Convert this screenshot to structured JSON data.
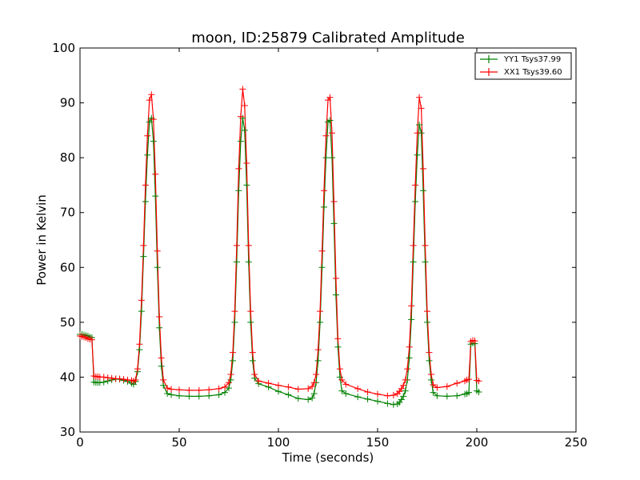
{
  "chart_data": {
    "type": "line",
    "title": "moon, ID:25879 Calibrated Amplitude",
    "xlabel": "Time (seconds)",
    "ylabel": "Power in Kelvin",
    "xlim": [
      0,
      250
    ],
    "ylim": [
      30,
      100
    ],
    "xticks": [
      "0",
      "50",
      "100",
      "150",
      "200",
      "250"
    ],
    "yticks": [
      "30",
      "40",
      "50",
      "60",
      "70",
      "80",
      "90",
      "100"
    ],
    "grid": false,
    "legend_position": "top-right",
    "x": [
      0,
      1,
      2,
      3,
      4,
      5,
      6,
      7,
      8,
      9,
      10,
      12,
      14,
      16,
      18,
      20,
      22,
      24,
      26,
      27,
      28,
      29,
      30,
      31,
      32,
      33,
      34,
      35,
      36,
      37,
      38,
      39,
      40,
      41,
      42,
      44,
      46,
      50,
      55,
      60,
      65,
      70,
      73,
      75,
      76,
      77,
      78,
      79,
      80,
      81,
      82,
      83,
      84,
      85,
      86,
      87,
      88,
      90,
      95,
      100,
      105,
      110,
      115,
      117,
      118,
      119,
      120,
      121,
      122,
      123,
      124,
      125,
      126,
      127,
      128,
      129,
      130,
      131,
      132,
      134,
      140,
      145,
      150,
      155,
      158,
      160,
      161,
      162,
      163,
      164,
      165,
      166,
      167,
      168,
      169,
      170,
      171,
      172,
      173,
      174,
      175,
      176,
      177,
      178,
      180,
      185,
      190,
      194,
      195,
      196,
      197,
      198,
      199,
      200,
      201
    ],
    "series": [
      {
        "name": "YY1 Tsys37.99",
        "color": "#008000",
        "values": [
          47.8,
          47.8,
          47.7,
          47.6,
          47.5,
          47.3,
          47.2,
          39.1,
          39.0,
          39.0,
          39.0,
          39.1,
          39.3,
          39.5,
          39.7,
          39.6,
          39.4,
          39.2,
          38.9,
          38.7,
          39.2,
          41.0,
          45.0,
          52.0,
          62.0,
          72.0,
          80.5,
          86.5,
          87.2,
          83.0,
          73.0,
          60.0,
          49.0,
          42.0,
          38.5,
          37.0,
          36.8,
          36.6,
          36.5,
          36.5,
          36.6,
          36.8,
          37.2,
          38.0,
          39.5,
          43.0,
          50.0,
          61.0,
          74.0,
          83.0,
          87.2,
          85.0,
          75.0,
          61.0,
          50.0,
          43.0,
          39.8,
          38.8,
          38.2,
          37.4,
          36.8,
          36.1,
          35.9,
          36.2,
          37.0,
          39.0,
          43.0,
          50.0,
          60.0,
          71.0,
          80.0,
          86.5,
          86.8,
          80.0,
          68.0,
          55.0,
          45.5,
          40.0,
          37.5,
          37.0,
          36.4,
          36.0,
          35.6,
          35.2,
          35.0,
          35.1,
          35.4,
          35.9,
          36.5,
          37.5,
          39.5,
          43.5,
          50.5,
          61.0,
          72.0,
          80.5,
          86.0,
          84.5,
          74.0,
          61.0,
          50.0,
          43.0,
          39.5,
          37.2,
          36.6,
          36.5,
          36.6,
          36.9,
          37.0,
          37.2,
          46.0,
          46.2,
          46.1,
          37.5,
          37.3
        ]
      },
      {
        "name": "XX1 Tsys39.60",
        "color": "#ff0000",
        "values": [
          47.5,
          47.4,
          47.3,
          47.2,
          47.0,
          46.9,
          46.8,
          40.2,
          40.1,
          40.1,
          40.0,
          40.0,
          39.9,
          39.8,
          39.7,
          39.7,
          39.6,
          39.5,
          39.4,
          39.3,
          39.5,
          41.5,
          46.0,
          54.0,
          64.0,
          75.0,
          84.0,
          90.5,
          91.5,
          87.0,
          77.0,
          63.0,
          51.0,
          43.5,
          39.5,
          38.0,
          37.8,
          37.7,
          37.6,
          37.6,
          37.7,
          37.9,
          38.2,
          39.0,
          40.5,
          44.5,
          52.0,
          64.0,
          78.0,
          87.5,
          92.5,
          89.5,
          79.0,
          64.0,
          52.0,
          44.5,
          40.5,
          39.3,
          38.9,
          38.5,
          38.2,
          37.8,
          37.9,
          38.3,
          39.0,
          40.5,
          45.0,
          52.0,
          63.0,
          74.0,
          84.0,
          90.5,
          91.0,
          84.5,
          72.0,
          58.0,
          47.0,
          41.5,
          39.5,
          38.7,
          37.9,
          37.3,
          36.9,
          36.6,
          36.7,
          37.0,
          37.4,
          37.9,
          38.5,
          39.5,
          41.5,
          45.5,
          53.0,
          64.0,
          75.0,
          84.5,
          91.0,
          89.0,
          78.0,
          64.0,
          52.0,
          44.5,
          40.5,
          38.6,
          38.1,
          38.3,
          38.9,
          39.3,
          39.5,
          39.6,
          46.5,
          46.7,
          46.6,
          39.4,
          39.3
        ]
      }
    ]
  }
}
